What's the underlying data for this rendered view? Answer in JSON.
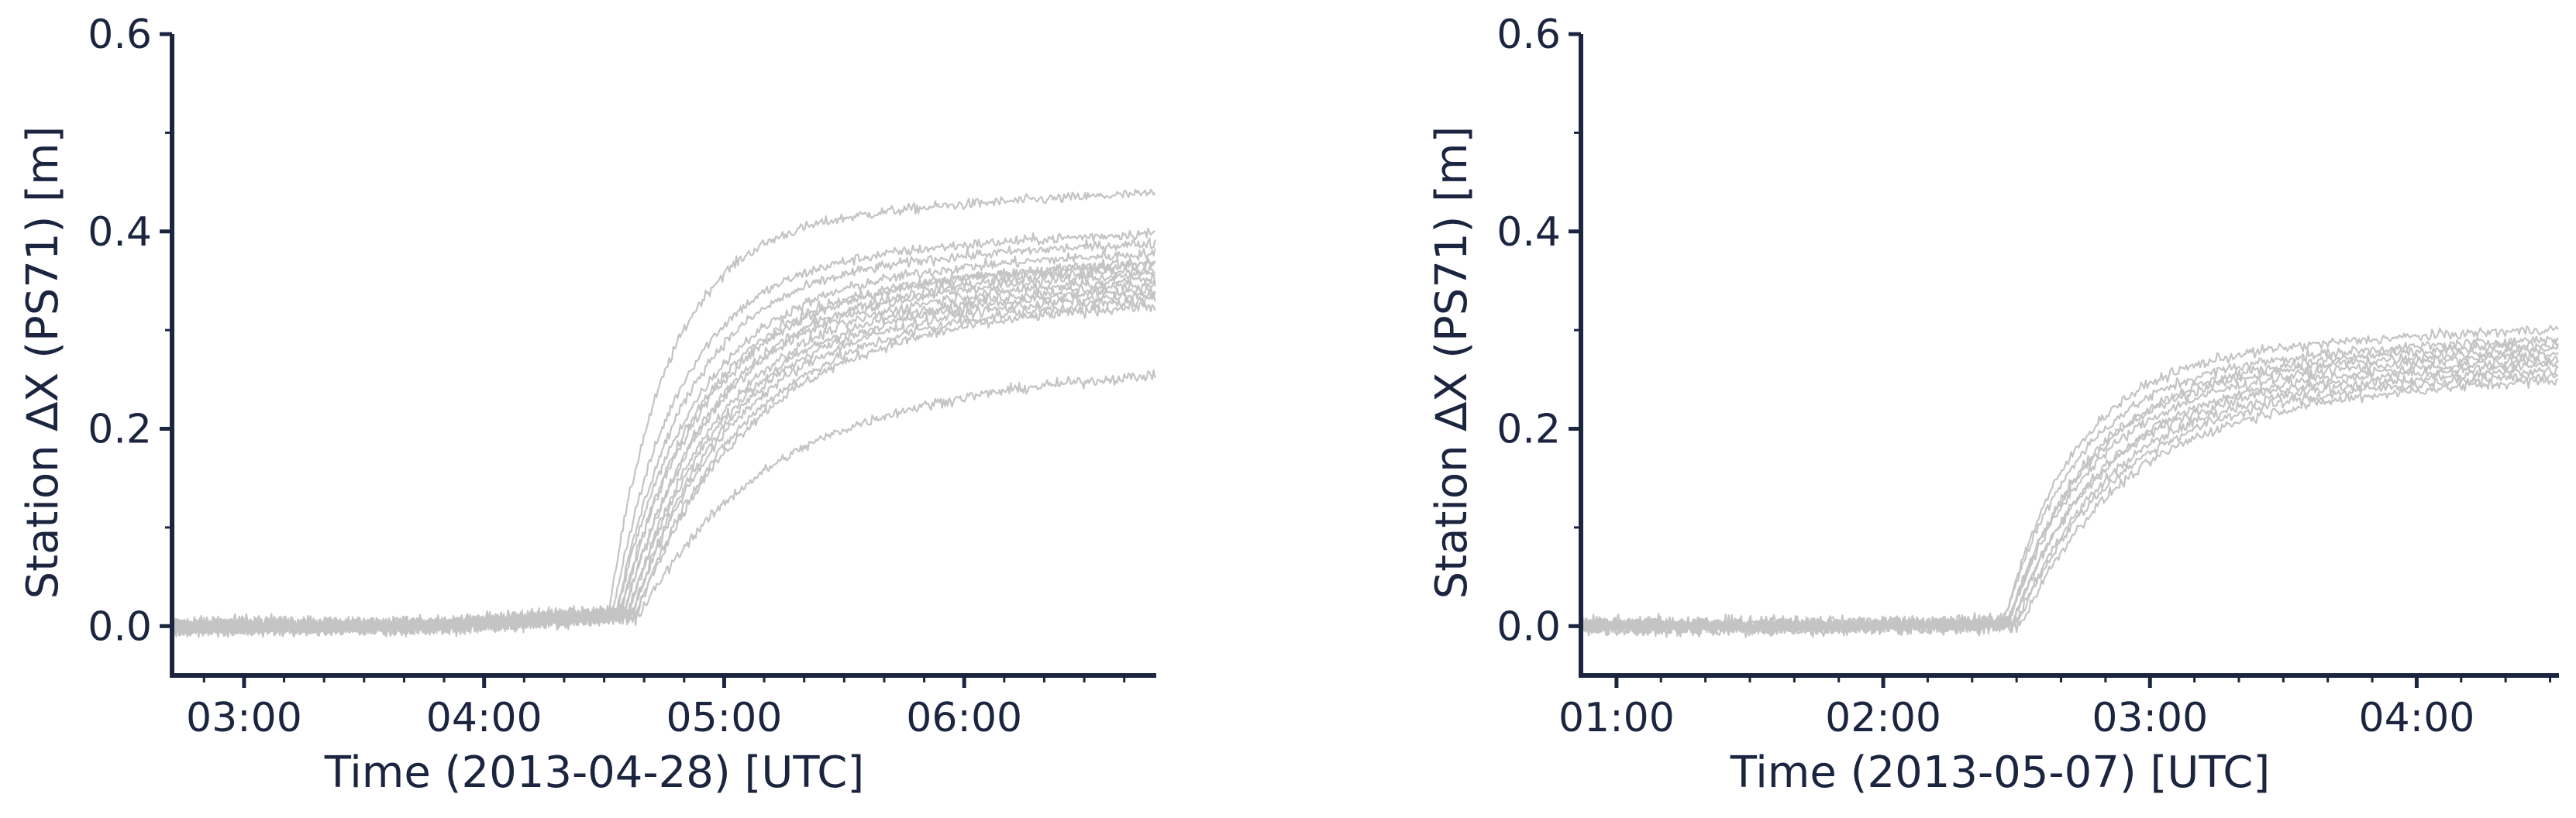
{
  "colors": {
    "axis": "#1b2540",
    "trace": "#c4c4c4"
  },
  "chart_data": [
    {
      "type": "line",
      "xlabel": "Time (2013-04-28) [UTC]",
      "ylabel": "Station ∆X (PS71) [m]",
      "xlim": [
        "02:42",
        "06:48"
      ],
      "ylim": [
        -0.05,
        0.6
      ],
      "x_ticks": [
        "03:00",
        "04:00",
        "05:00",
        "06:00"
      ],
      "y_ticks": [
        "0.0",
        "0.2",
        "0.4",
        "0.6"
      ],
      "grid": false,
      "x_units": "minutes of day (UTC)",
      "series": [
        {
          "onset": "04:31",
          "final": 0.45,
          "rise": 15
        },
        {
          "onset": "04:32",
          "final": 0.41,
          "rise": 17
        },
        {
          "onset": "04:33",
          "final": 0.4,
          "rise": 18
        },
        {
          "onset": "04:33",
          "final": 0.39,
          "rise": 20
        },
        {
          "onset": "04:34",
          "final": 0.38,
          "rise": 20
        },
        {
          "onset": "04:34",
          "final": 0.38,
          "rise": 21
        },
        {
          "onset": "04:35",
          "final": 0.375,
          "rise": 22
        },
        {
          "onset": "04:35",
          "final": 0.37,
          "rise": 22
        },
        {
          "onset": "04:36",
          "final": 0.365,
          "rise": 23
        },
        {
          "onset": "04:36",
          "final": 0.36,
          "rise": 24
        },
        {
          "onset": "04:37",
          "final": 0.355,
          "rise": 24
        },
        {
          "onset": "04:37",
          "final": 0.35,
          "rise": 25
        },
        {
          "onset": "04:38",
          "final": 0.345,
          "rise": 26
        },
        {
          "onset": "04:38",
          "final": 0.34,
          "rise": 27
        },
        {
          "onset": "04:39",
          "final": 0.27,
          "rise": 30
        }
      ]
    },
    {
      "type": "line",
      "xlabel": "Time (2013-05-07) [UTC]",
      "ylabel": "Station ∆X (PS71) [m]",
      "xlim": [
        "00:52",
        "04:32"
      ],
      "ylim": [
        -0.05,
        0.6
      ],
      "x_ticks": [
        "01:00",
        "02:00",
        "03:00",
        "04:00"
      ],
      "y_ticks": [
        "0.0",
        "0.2",
        "0.4",
        "0.6"
      ],
      "grid": false,
      "x_units": "minutes of day (UTC)",
      "series": [
        {
          "onset": "02:27",
          "final": 0.325,
          "rise": 16
        },
        {
          "onset": "02:27",
          "final": 0.315,
          "rise": 17
        },
        {
          "onset": "02:28",
          "final": 0.31,
          "rise": 18
        },
        {
          "onset": "02:28",
          "final": 0.305,
          "rise": 18
        },
        {
          "onset": "02:28",
          "final": 0.3,
          "rise": 19
        },
        {
          "onset": "02:29",
          "final": 0.295,
          "rise": 20
        },
        {
          "onset": "02:29",
          "final": 0.29,
          "rise": 20
        },
        {
          "onset": "02:30",
          "final": 0.285,
          "rise": 21
        },
        {
          "onset": "02:30",
          "final": 0.28,
          "rise": 22
        },
        {
          "onset": "02:31",
          "final": 0.275,
          "rise": 23
        }
      ]
    }
  ]
}
